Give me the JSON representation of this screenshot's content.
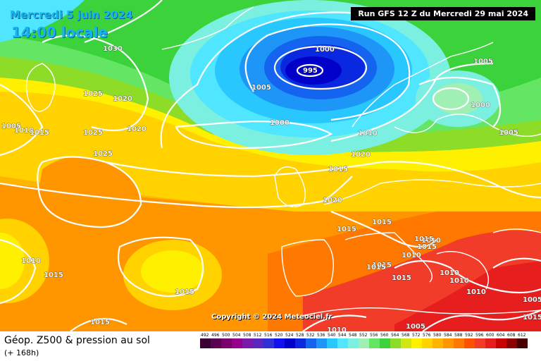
{
  "header": {
    "date": "Mercredi 5 juin 2024",
    "time": "14:00 locale",
    "run": "Run GFS 12 Z du Mercredi 29 mai 2024"
  },
  "copyright": "Copyright © 2024 Meteociel.fr",
  "legend": {
    "title": "Géop. Z500 & pression au sol",
    "subtitle": "(+ 168h)",
    "ticks": [
      "492",
      "496",
      "500",
      "504",
      "508",
      "512",
      "516",
      "520",
      "524",
      "528",
      "532",
      "536",
      "540",
      "544",
      "548",
      "552",
      "556",
      "560",
      "564",
      "568",
      "572",
      "576",
      "580",
      "584",
      "588",
      "592",
      "596",
      "600",
      "604",
      "608",
      "612"
    ],
    "colors": [
      "#3a0034",
      "#5a0050",
      "#7a006e",
      "#96008c",
      "#7a1aa8",
      "#5a28c0",
      "#3030d8",
      "#1010f0",
      "#0000c8",
      "#0a28e0",
      "#1464f0",
      "#1e96f8",
      "#28c8ff",
      "#50e6ff",
      "#7cf0e0",
      "#a0f0b4",
      "#64e664",
      "#3cd23c",
      "#8cdc28",
      "#d2e614",
      "#fff000",
      "#ffd200",
      "#ffb400",
      "#ff9600",
      "#ff7800",
      "#ff5000",
      "#f03c28",
      "#e61e1e",
      "#c80000",
      "#8c0000",
      "#460000"
    ]
  },
  "isobars": [
    {
      "label": "995"
    },
    {
      "label": "1000"
    },
    {
      "label": "1005"
    },
    {
      "label": "1000"
    },
    {
      "label": "1010"
    },
    {
      "label": "1015"
    },
    {
      "label": "1020"
    },
    {
      "label": "1025"
    },
    {
      "label": "1030"
    },
    {
      "label": "1020"
    },
    {
      "label": "1025"
    },
    {
      "label": "1020"
    },
    {
      "label": "1005"
    },
    {
      "label": "1010"
    },
    {
      "label": "1015"
    },
    {
      "label": "1025"
    },
    {
      "label": "1005"
    },
    {
      "label": "1000"
    },
    {
      "label": "1005"
    },
    {
      "label": "1010"
    },
    {
      "label": "1015"
    },
    {
      "label": "1015"
    },
    {
      "label": "1015"
    },
    {
      "label": "1015"
    },
    {
      "label": "1015"
    },
    {
      "label": "1010"
    },
    {
      "label": "1010"
    },
    {
      "label": "1010"
    },
    {
      "label": "1015"
    },
    {
      "label": "1015"
    },
    {
      "label": "1015"
    },
    {
      "label": "1010"
    },
    {
      "label": "1015"
    },
    {
      "label": "1010"
    },
    {
      "label": "1005"
    },
    {
      "label": "1010"
    },
    {
      "label": "1005"
    },
    {
      "label": "1015"
    },
    {
      "label": "1020"
    },
    {
      "label": "1015"
    }
  ]
}
